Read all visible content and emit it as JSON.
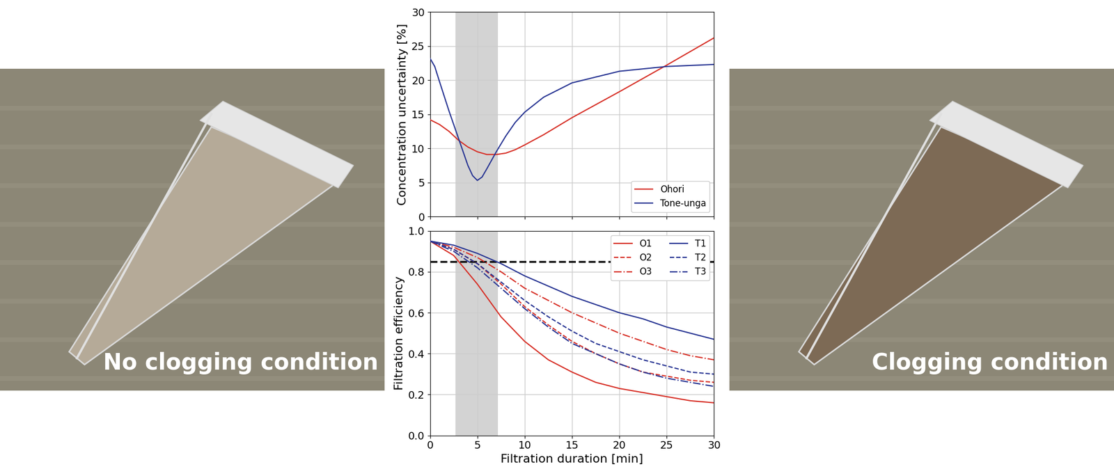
{
  "chart_data": [
    {
      "type": "line",
      "y_label": "Concentration uncertainty [%]",
      "xlim": [
        0,
        30
      ],
      "xticks": [
        0,
        5,
        10,
        15,
        20,
        25,
        30
      ],
      "ylim": [
        0,
        30
      ],
      "yticks": [
        0,
        5,
        10,
        15,
        20,
        25,
        30
      ],
      "grid": true,
      "legend": "lower right",
      "tick_labels": "y",
      "highlight": [
        2.7,
        7.2
      ],
      "series": [
        {
          "name": "Ohori",
          "color": "#d73027",
          "line_style": "solid",
          "x": [
            0,
            1,
            2,
            3,
            4,
            5,
            6,
            7,
            8,
            9,
            10,
            12,
            15,
            20,
            25,
            30
          ],
          "values": [
            14.2,
            13.5,
            12.5,
            11.2,
            10.2,
            9.5,
            9.1,
            9.1,
            9.3,
            9.8,
            10.5,
            12.0,
            14.5,
            18.3,
            22.2,
            26.2
          ]
        },
        {
          "name": "Tone-unga",
          "color": "#283593",
          "line_style": "solid",
          "x": [
            0,
            0.5,
            1,
            2,
            3,
            4,
            4.5,
            5,
            5.5,
            6,
            7,
            8,
            9,
            10,
            12,
            15,
            20,
            25,
            30
          ],
          "values": [
            23.2,
            22.0,
            19.8,
            15.5,
            11.5,
            7.5,
            6.0,
            5.3,
            5.8,
            7.0,
            9.5,
            11.8,
            13.8,
            15.3,
            17.5,
            19.6,
            21.3,
            22.0,
            22.3
          ]
        }
      ]
    },
    {
      "type": "line",
      "x_label": "Filtration duration [min]",
      "y_label": "Filtration efficiency",
      "xlim": [
        0,
        30
      ],
      "xticks": [
        0,
        5,
        10,
        15,
        20,
        25,
        30
      ],
      "ylim": [
        0,
        1
      ],
      "yticks": [
        {
          "value": 0,
          "label": "0.0"
        },
        0.2,
        0.4,
        0.6,
        0.8,
        {
          "value": 1,
          "label": "1.0"
        }
      ],
      "grid": true,
      "legend": "upper right",
      "highlight": [
        2.7,
        7.2
      ],
      "threshold": 0.85,
      "x": [
        0,
        2.5,
        5,
        7.5,
        10,
        12.5,
        15,
        17.5,
        20,
        22.5,
        25,
        27.5,
        30
      ],
      "series": [
        {
          "name": "O1",
          "color": "#d73027",
          "line_style": "solid",
          "values": [
            0.95,
            0.88,
            0.74,
            0.58,
            0.46,
            0.37,
            0.31,
            0.26,
            0.23,
            0.21,
            0.19,
            0.17,
            0.16
          ]
        },
        {
          "name": "O2",
          "color": "#d73027",
          "line_style": "dashed",
          "values": [
            0.95,
            0.91,
            0.84,
            0.74,
            0.63,
            0.54,
            0.46,
            0.4,
            0.35,
            0.31,
            0.29,
            0.27,
            0.26
          ]
        },
        {
          "name": "O3",
          "color": "#d73027",
          "line_style": "dashdot",
          "values": [
            0.95,
            0.92,
            0.87,
            0.8,
            0.72,
            0.66,
            0.6,
            0.55,
            0.5,
            0.46,
            0.42,
            0.39,
            0.37
          ]
        },
        {
          "name": "T1",
          "color": "#283593",
          "line_style": "solid",
          "values": [
            0.95,
            0.93,
            0.89,
            0.84,
            0.78,
            0.73,
            0.68,
            0.64,
            0.6,
            0.57,
            0.53,
            0.5,
            0.47
          ]
        },
        {
          "name": "T2",
          "color": "#283593",
          "line_style": "dashed",
          "values": [
            0.95,
            0.91,
            0.84,
            0.75,
            0.66,
            0.58,
            0.51,
            0.45,
            0.41,
            0.37,
            0.34,
            0.31,
            0.3
          ]
        },
        {
          "name": "T3",
          "color": "#283593",
          "line_style": "dashdot",
          "values": [
            0.95,
            0.9,
            0.82,
            0.72,
            0.62,
            0.53,
            0.45,
            0.4,
            0.35,
            0.31,
            0.28,
            0.26,
            0.24
          ]
        }
      ]
    }
  ],
  "images": [
    {
      "caption": "No clogging condition"
    },
    {
      "caption": "Clogging condition"
    }
  ]
}
